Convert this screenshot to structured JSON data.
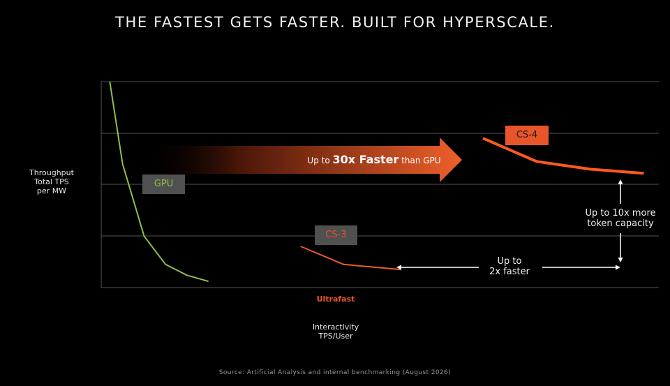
{
  "chart_data": {
    "type": "line",
    "title": "THE FASTEST GETS FASTER. BUILT FOR HYPERSCALE.",
    "xlabel": "Interactivity\nTPS/User",
    "ylabel": "Throughput\nTotal TPS\nper MW",
    "grid": true,
    "x_region_label": "Ultrafast",
    "series": [
      {
        "name": "GPU",
        "color": "#8fbf4a",
        "points": [
          [
            4,
            4.0
          ],
          [
            10,
            2.4
          ],
          [
            20,
            1.0
          ],
          [
            30,
            0.45
          ],
          [
            40,
            0.24
          ],
          [
            50,
            0.12
          ]
        ]
      },
      {
        "name": "CS-3",
        "color": "#e85c2b",
        "points": [
          [
            93,
            0.8
          ],
          [
            113,
            0.45
          ],
          [
            140,
            0.35
          ]
        ]
      },
      {
        "name": "CS-4",
        "color": "#ff5a1f",
        "points": [
          [
            178,
            2.9
          ],
          [
            203,
            2.45
          ],
          [
            228,
            2.3
          ],
          [
            253,
            2.22
          ]
        ]
      }
    ],
    "annotations": {
      "arrow_text_pre": "Up to ",
      "arrow_text_bold": "30x Faster",
      "arrow_text_post": " than GPU",
      "speed": "Up to\n2x faster",
      "capacity": "Up to 10x more\ntoken capacity"
    },
    "source": "Source: Artificial Analysis and internal benchmarking (August 2026)",
    "colors": {
      "gpu": "#8fbf4a",
      "cs3": "#e85c2b",
      "cs4": "#ff5a1f",
      "ultrafast": "#e8552a",
      "grid": "#555555",
      "label_box_gray": "#505050",
      "label_box_orange": "#e8552a"
    }
  }
}
